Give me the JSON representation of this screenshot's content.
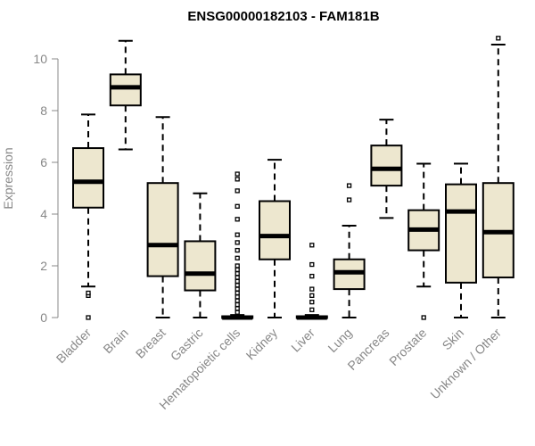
{
  "chart_data": {
    "type": "boxplot",
    "title": "ENSG00000182103 - FAM181B",
    "ylabel": "Expression",
    "xlabel": "",
    "ylim": [
      0,
      10.8
    ],
    "yticks": [
      0,
      2,
      4,
      6,
      8,
      10
    ],
    "grid": false,
    "box_fill": "#ede7cf",
    "categories": [
      "Bladder",
      "Brain",
      "Breast",
      "Gastric",
      "Hematopoietic cells",
      "Kidney",
      "Liver",
      "Lung",
      "Pancreas",
      "Prostate",
      "Skin",
      "Unknown / Other"
    ],
    "boxes": [
      {
        "whisker_low": 1.2,
        "q1": 4.25,
        "median": 5.25,
        "q3": 6.55,
        "whisker_high": 7.85,
        "outliers": [
          0.0,
          0.85,
          0.95
        ]
      },
      {
        "whisker_low": 6.5,
        "q1": 8.2,
        "median": 8.9,
        "q3": 9.4,
        "whisker_high": 10.7,
        "outliers": []
      },
      {
        "whisker_low": 0.0,
        "q1": 1.6,
        "median": 2.8,
        "q3": 5.2,
        "whisker_high": 7.75,
        "outliers": []
      },
      {
        "whisker_low": 0.0,
        "q1": 1.05,
        "median": 1.7,
        "q3": 2.95,
        "whisker_high": 4.8,
        "outliers": []
      },
      {
        "whisker_low": 0.0,
        "q1": 0.0,
        "median": 0.0,
        "q3": 0.05,
        "whisker_high": 0.1,
        "outliers": [
          0.2,
          0.35,
          0.5,
          0.65,
          0.8,
          0.95,
          1.1,
          1.25,
          1.4,
          1.55,
          1.7,
          1.85,
          2.0,
          2.3,
          2.6,
          2.9,
          3.2,
          3.8,
          4.3,
          4.9,
          5.35,
          5.55
        ]
      },
      {
        "whisker_low": 0.0,
        "q1": 2.25,
        "median": 3.15,
        "q3": 4.5,
        "whisker_high": 6.1,
        "outliers": []
      },
      {
        "whisker_low": 0.0,
        "q1": 0.0,
        "median": 0.0,
        "q3": 0.05,
        "whisker_high": 0.1,
        "outliers": [
          0.3,
          0.6,
          0.85,
          1.1,
          1.6,
          2.05,
          2.8
        ]
      },
      {
        "whisker_low": 0.0,
        "q1": 1.1,
        "median": 1.75,
        "q3": 2.25,
        "whisker_high": 3.55,
        "outliers": [
          4.55,
          5.1
        ]
      },
      {
        "whisker_low": 3.85,
        "q1": 5.1,
        "median": 5.75,
        "q3": 6.65,
        "whisker_high": 7.65,
        "outliers": []
      },
      {
        "whisker_low": 1.2,
        "q1": 2.6,
        "median": 3.4,
        "q3": 4.15,
        "whisker_high": 5.95,
        "outliers": [
          0.0
        ]
      },
      {
        "whisker_low": 0.0,
        "q1": 1.35,
        "median": 4.1,
        "q3": 5.15,
        "whisker_high": 5.95,
        "outliers": []
      },
      {
        "whisker_low": 0.0,
        "q1": 1.55,
        "median": 3.3,
        "q3": 5.2,
        "whisker_high": 10.55,
        "outliers": [
          10.8
        ]
      }
    ]
  }
}
